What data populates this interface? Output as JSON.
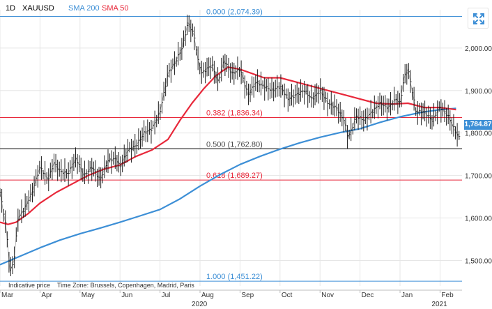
{
  "header": {
    "timeframe": "1D",
    "symbol": "XAUUSD",
    "sma200_label": "SMA 200",
    "sma50_label": "SMA 50"
  },
  "colors": {
    "sma200": "#3d8fd6",
    "sma50": "#e8283a",
    "price_bars": "#1f1f1f",
    "fib_line_black": "#444444",
    "grid": "#e6e6e6"
  },
  "footnote": {
    "indicative": "Indicative price",
    "timezone": "Time Zone: Brussels, Copenhagen, Madrid, Paris"
  },
  "last_price_label": "1,784.87",
  "expand_icon": "expand-arrows-icon",
  "chart_data": {
    "type": "line",
    "instrument": "XAUUSD",
    "ylim": [
      1440,
      2090
    ],
    "y_ticks": [
      1500,
      1600,
      1700,
      1800,
      1900,
      2000
    ],
    "y_tick_labels": [
      "1,500.00",
      "1,600.00",
      "1,700.00",
      "1,800.00",
      "1,900.00",
      "2,000.00"
    ],
    "x_tick_labels": [
      "Mar",
      "Apr",
      "May",
      "Jun",
      "Jul",
      "Aug",
      "Sep",
      "Oct",
      "Nov",
      "Dec",
      "Jan",
      "Feb"
    ],
    "x_tick_positions": [
      0,
      1,
      2,
      3,
      4,
      5,
      6,
      7,
      8,
      9,
      10,
      11
    ],
    "x_range": [
      0,
      11.55
    ],
    "year_labels": [
      {
        "label": "2020",
        "x": 5.0
      },
      {
        "label": "2021",
        "x": 11.0
      }
    ],
    "fib_levels": [
      {
        "label": "0.000 (2,074.39)",
        "value": 2074.39,
        "color": "#3d8fd6"
      },
      {
        "label": "0.382 (1,836.34)",
        "value": 1836.34,
        "color": "#e8283a"
      },
      {
        "label": "0.500 (1,762.80)",
        "value": 1762.8,
        "color": "#444444"
      },
      {
        "label": "0.618 (1,689.27)",
        "value": 1689.27,
        "color": "#e8283a"
      },
      {
        "label": "1.000 (1,451.22)",
        "value": 1451.22,
        "color": "#3d8fd6"
      }
    ],
    "price_series": {
      "name": "XAUUSD",
      "x": [
        0,
        0.15,
        0.25,
        0.35,
        0.45,
        0.6,
        0.8,
        1.0,
        1.2,
        1.35,
        1.5,
        1.7,
        1.9,
        2.1,
        2.3,
        2.5,
        2.7,
        2.9,
        3.0,
        3.2,
        3.4,
        3.6,
        3.8,
        4.0,
        4.2,
        4.4,
        4.55,
        4.7,
        4.85,
        4.95,
        5.05,
        5.15,
        5.3,
        5.45,
        5.6,
        5.8,
        6.0,
        6.2,
        6.4,
        6.6,
        6.8,
        7.0,
        7.2,
        7.4,
        7.6,
        7.8,
        8.0,
        8.2,
        8.4,
        8.6,
        8.7,
        8.8,
        8.9,
        9.1,
        9.3,
        9.5,
        9.7,
        9.9,
        10.0,
        10.1,
        10.2,
        10.4,
        10.6,
        10.8,
        11.0,
        11.2,
        11.35,
        11.5
      ],
      "values": [
        1660,
        1580,
        1475,
        1500,
        1600,
        1620,
        1660,
        1720,
        1690,
        1730,
        1710,
        1705,
        1740,
        1700,
        1720,
        1690,
        1735,
        1740,
        1720,
        1760,
        1770,
        1800,
        1810,
        1850,
        1940,
        1970,
        2000,
        2060,
        2030,
        1970,
        1940,
        1950,
        1960,
        1920,
        1970,
        1940,
        1950,
        1890,
        1920,
        1910,
        1900,
        1910,
        1880,
        1890,
        1900,
        1880,
        1900,
        1870,
        1860,
        1830,
        1790,
        1810,
        1840,
        1830,
        1850,
        1870,
        1860,
        1880,
        1870,
        1930,
        1950,
        1850,
        1850,
        1830,
        1860,
        1840,
        1810,
        1785
      ]
    },
    "series": [
      {
        "name": "SMA 200",
        "color": "#3d8fd6",
        "x": [
          0,
          0.5,
          1.0,
          1.5,
          2.0,
          2.5,
          3.0,
          3.5,
          4.0,
          4.5,
          5.0,
          5.5,
          6.0,
          6.5,
          7.0,
          7.5,
          8.0,
          8.5,
          9.0,
          9.5,
          10.0,
          10.5,
          11.0,
          11.4
        ],
        "values": [
          1490,
          1510,
          1530,
          1548,
          1563,
          1576,
          1590,
          1605,
          1620,
          1645,
          1675,
          1702,
          1726,
          1745,
          1762,
          1777,
          1790,
          1801,
          1810,
          1825,
          1838,
          1848,
          1855,
          1858
        ]
      },
      {
        "name": "SMA 50",
        "color": "#e8283a",
        "x": [
          0,
          0.2,
          0.4,
          0.7,
          1.0,
          1.4,
          1.8,
          2.2,
          2.6,
          3.0,
          3.4,
          3.8,
          4.2,
          4.5,
          4.8,
          5.1,
          5.4,
          5.7,
          6.0,
          6.3,
          6.6,
          7.0,
          7.4,
          7.8,
          8.2,
          8.6,
          9.0,
          9.4,
          9.8,
          10.2,
          10.6,
          11.0,
          11.4
        ],
        "values": [
          1590,
          1585,
          1590,
          1610,
          1635,
          1660,
          1680,
          1700,
          1715,
          1725,
          1745,
          1760,
          1785,
          1830,
          1870,
          1905,
          1935,
          1955,
          1950,
          1940,
          1930,
          1930,
          1920,
          1910,
          1900,
          1890,
          1880,
          1870,
          1868,
          1870,
          1860,
          1860,
          1855
        ]
      }
    ],
    "grid": true,
    "legend_position": "top-left"
  }
}
